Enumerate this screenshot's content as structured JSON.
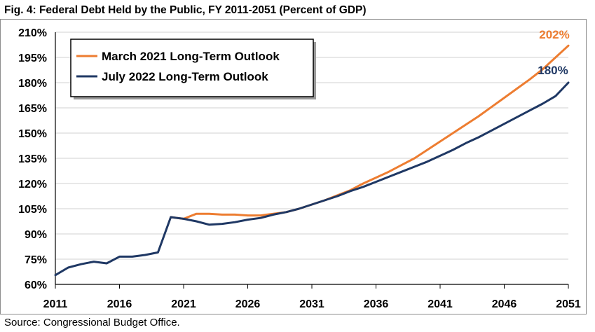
{
  "title": "Fig. 4: Federal Debt Held by the Public, FY 2011-2051 (Percent of GDP)",
  "source": "Source: Congressional Budget Office.",
  "chart_data": {
    "type": "line",
    "title": "Fig. 4: Federal Debt Held by the Public, FY 2011-2051 (Percent of GDP)",
    "xlabel": "",
    "ylabel": "",
    "xlim": [
      2011,
      2051
    ],
    "ylim": [
      60,
      210
    ],
    "x_ticks": [
      "2011",
      "2016",
      "2021",
      "2026",
      "2031",
      "2036",
      "2041",
      "2046",
      "2051"
    ],
    "y_ticks": [
      "60%",
      "75%",
      "90%",
      "105%",
      "120%",
      "135%",
      "150%",
      "165%",
      "180%",
      "195%",
      "210%"
    ],
    "grid": "horizontal",
    "legend_position": "top-left",
    "series": [
      {
        "name": "March 2021 Long-Term Outlook",
        "color": "#ED7D31",
        "end_label": "202%",
        "x": [
          2020,
          2021,
          2022,
          2023,
          2024,
          2025,
          2026,
          2027,
          2028,
          2029,
          2030,
          2031,
          2032,
          2033,
          2034,
          2035,
          2036,
          2037,
          2038,
          2039,
          2040,
          2041,
          2042,
          2043,
          2044,
          2045,
          2046,
          2047,
          2048,
          2049,
          2050,
          2051
        ],
        "values": [
          100,
          99,
          102,
          102,
          101.5,
          101.5,
          101,
          101,
          102,
          103,
          105,
          107.5,
          110,
          113,
          116,
          120,
          123.5,
          127,
          131,
          135,
          140,
          145,
          150,
          155,
          160,
          165.5,
          171,
          176.5,
          182,
          188,
          195,
          202
        ]
      },
      {
        "name": "July 2022 Long-Term Outlook",
        "color": "#1F3864",
        "end_label": "180%",
        "x": [
          2011,
          2012,
          2013,
          2014,
          2015,
          2016,
          2017,
          2018,
          2019,
          2020,
          2021,
          2022,
          2023,
          2024,
          2025,
          2026,
          2027,
          2028,
          2029,
          2030,
          2031,
          2032,
          2033,
          2034,
          2035,
          2036,
          2037,
          2038,
          2039,
          2040,
          2041,
          2042,
          2043,
          2044,
          2045,
          2046,
          2047,
          2048,
          2049,
          2050,
          2051
        ],
        "values": [
          65.5,
          70,
          72,
          73.5,
          72.5,
          76.5,
          76.5,
          77.5,
          79,
          100,
          99,
          97.5,
          95.5,
          96,
          97,
          98.5,
          99.5,
          101.5,
          103,
          105,
          107.5,
          110,
          112.5,
          115.5,
          118,
          121,
          124,
          127,
          130,
          133,
          136.5,
          140,
          144,
          147.5,
          151.5,
          155.5,
          159.5,
          163.5,
          167.5,
          172,
          180
        ]
      }
    ]
  }
}
